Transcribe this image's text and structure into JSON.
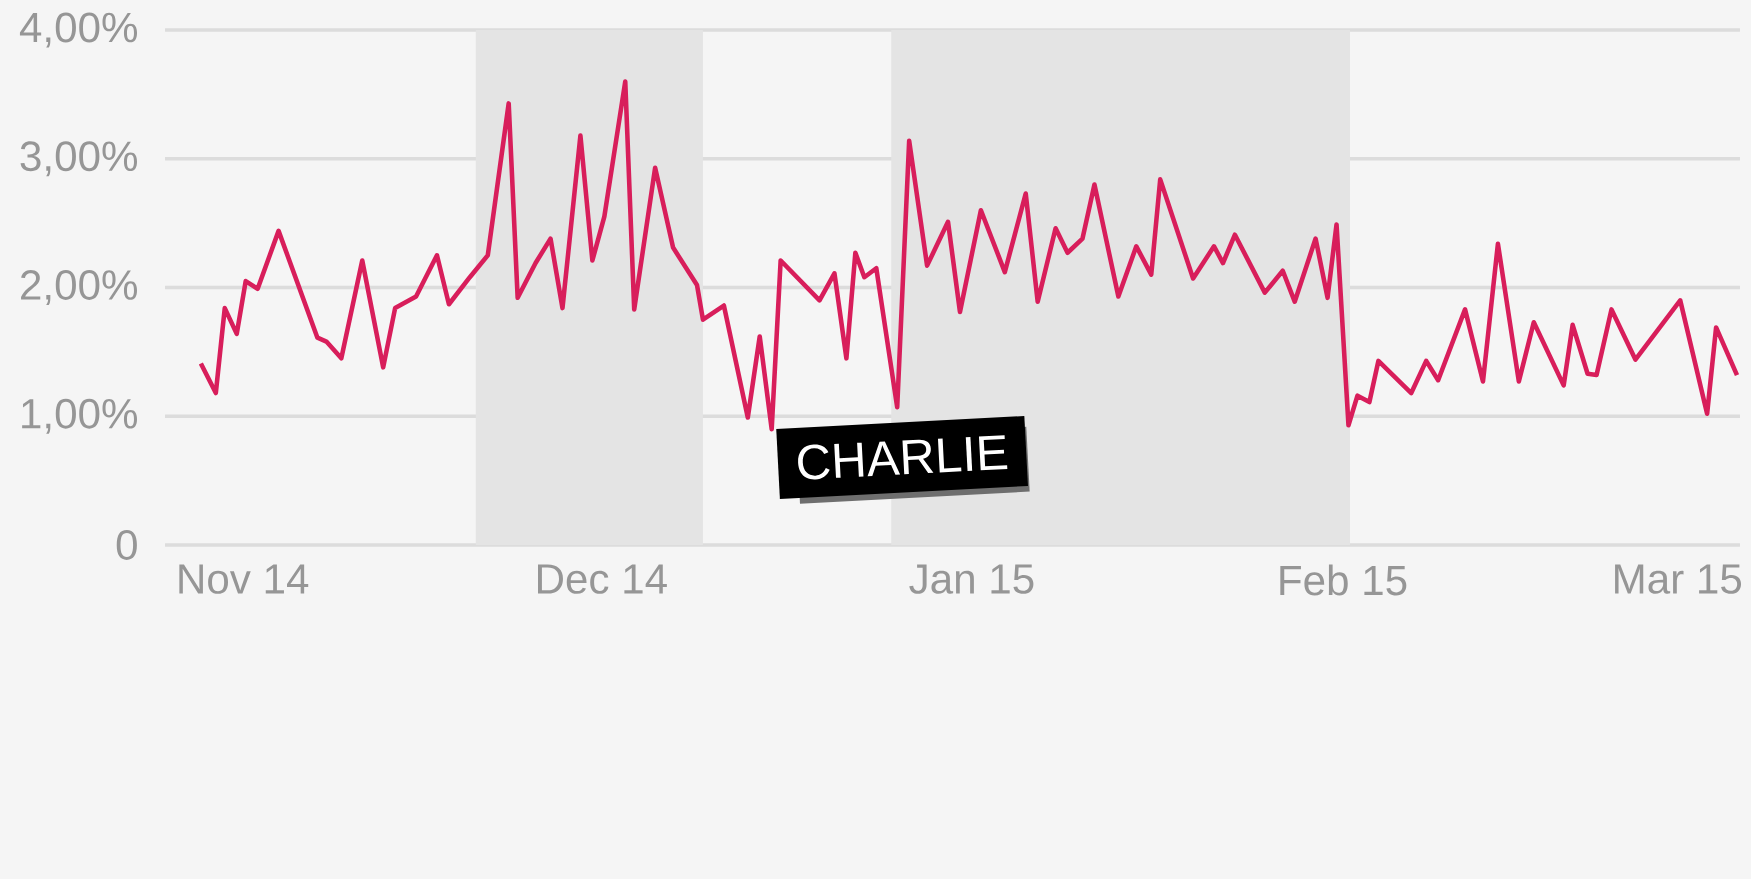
{
  "chart_data": {
    "type": "line",
    "x": [
      "2014-10-28T12:00",
      "2014-10-29T18:00",
      "2014-10-30T12:00",
      "2014-10-31T12:00",
      "2014-11-01T06:00",
      "2014-11-02T06:00",
      "2014-11-04T00:00",
      "2014-11-07T06:00",
      "2014-11-08T00:00",
      "2014-11-09T06:00",
      "2014-11-11T00:00",
      "2014-11-12T18:00",
      "2014-11-13T18:00",
      "2014-11-15T12:00",
      "2014-11-17T06:00",
      "2014-11-18T06:00",
      "2014-11-20T00:00",
      "2014-11-21T12:00",
      "2014-11-23T06:00",
      "2014-11-24T00:00",
      "2014-11-25T12:00",
      "2014-11-26T18:00",
      "2014-11-27T18:00",
      "2014-11-29T06:00",
      "2014-11-30T06:00",
      "2014-12-01T06:00",
      "2014-12-03T00:00",
      "2014-12-03T18:00",
      "2014-12-05T12:00",
      "2014-12-07T00:00",
      "2014-12-09T00:00",
      "2014-12-09T12:00",
      "2014-12-11T06:00",
      "2014-12-13T06:00",
      "2014-12-14T06:00",
      "2014-12-15T06:00",
      "2014-12-16T00:00",
      "2014-12-19T06:00",
      "2014-12-20T12:00",
      "2014-12-21T12:00",
      "2014-12-22T06:00",
      "2014-12-23T00:00",
      "2014-12-24T00:00",
      "2014-12-25T18:00",
      "2014-12-26T18:00",
      "2014-12-28T06:00",
      "2014-12-30T00:00",
      "2014-12-31T00:00",
      "2015-01-01T18:00",
      "2015-01-03T18:00",
      "2015-01-05T12:00",
      "2015-01-06T12:00",
      "2015-01-08T00:00",
      "2015-01-09T00:00",
      "2015-01-10T06:00",
      "2015-01-11T06:00",
      "2015-01-13T06:00",
      "2015-01-14T18:00",
      "2015-01-16T00:00",
      "2015-01-16T18:00",
      "2015-01-19T12:00",
      "2015-01-21T06:00",
      "2015-01-22T00:00",
      "2015-01-23T00:00",
      "2015-01-25T12:00",
      "2015-01-27T00:00",
      "2015-01-28T00:00",
      "2015-01-29T18:00",
      "2015-01-30T18:00",
      "2015-01-31T12:00",
      "2015-02-01T12:00",
      "2015-02-02T06:00",
      "2015-02-03T06:00",
      "2015-02-04T00:00",
      "2015-02-06T18:00",
      "2015-02-08T00:00",
      "2015-02-09T00:00",
      "2015-02-11T06:00",
      "2015-02-12T18:00",
      "2015-02-14T00:00",
      "2015-02-15T18:00",
      "2015-02-17T00:00",
      "2015-02-19T12:00",
      "2015-02-20T06:00",
      "2015-02-21T12:00",
      "2015-02-22T06:00",
      "2015-02-23T12:00",
      "2015-02-25T12:00",
      "2015-03-01T06:00",
      "2015-03-03T12:00",
      "2015-03-04T06:00",
      "2015-03-06T00:00"
    ],
    "series": [
      {
        "color": "#d81e5b",
        "values": [
          1.41,
          1.18,
          1.84,
          1.64,
          2.05,
          1.99,
          2.44,
          1.61,
          1.58,
          1.45,
          2.21,
          1.38,
          1.84,
          1.93,
          2.25,
          1.87,
          2.08,
          2.25,
          3.43,
          1.92,
          2.19,
          2.38,
          1.84,
          3.18,
          2.21,
          2.55,
          3.6,
          1.83,
          2.93,
          2.31,
          2.02,
          1.75,
          1.86,
          0.99,
          1.62,
          0.9,
          2.21,
          1.9,
          2.11,
          1.45,
          2.27,
          2.08,
          2.15,
          1.07,
          3.14,
          2.17,
          2.51,
          1.81,
          2.6,
          2.12,
          2.73,
          1.89,
          2.46,
          2.27,
          2.38,
          2.8,
          1.93,
          2.32,
          2.1,
          2.84,
          2.07,
          2.32,
          2.19,
          2.41,
          1.96,
          2.13,
          1.89,
          2.38,
          1.92,
          2.49,
          0.93,
          1.16,
          1.11,
          1.43,
          1.18,
          1.43,
          1.28,
          1.83,
          1.27,
          2.34,
          1.27,
          1.73,
          1.24,
          1.71,
          1.33,
          1.32,
          1.83,
          1.44,
          1.9,
          1.02,
          1.69,
          1.32
        ]
      }
    ],
    "xlim": [
      "2014-10-25T12:00",
      "2015-03-06T06:00"
    ],
    "xticks": [
      {
        "value": "2014-11-01",
        "label": "Nov 14"
      },
      {
        "value": "2014-12-01",
        "label": "Dec 14"
      },
      {
        "value": "2015-01-01",
        "label": "Jan 15"
      },
      {
        "value": "2015-02-01",
        "label": "Feb 15"
      },
      {
        "value": "2015-03-01",
        "label": "Mar 15"
      }
    ],
    "ylim": [
      0,
      4
    ],
    "yticks": [
      0,
      {
        "value": 1,
        "label": "1,00%"
      },
      {
        "value": 2,
        "label": "2,00%"
      },
      {
        "value": 3,
        "label": "3,00%"
      },
      {
        "value": 4,
        "label": "4,00%"
      }
    ],
    "grid": "y",
    "bands": [
      {
        "axis": "x",
        "from": "2014-11-20T12:00",
        "to": "2014-12-09T12:00",
        "color": "#e4e4e4"
      },
      {
        "axis": "x",
        "from": "2014-12-25T06:00",
        "to": "2015-02-01T15:00",
        "color": "#e4e4e4"
      }
    ],
    "annotations": [
      "CHARLIE"
    ],
    "line_style": "solid",
    "marker": "none"
  }
}
